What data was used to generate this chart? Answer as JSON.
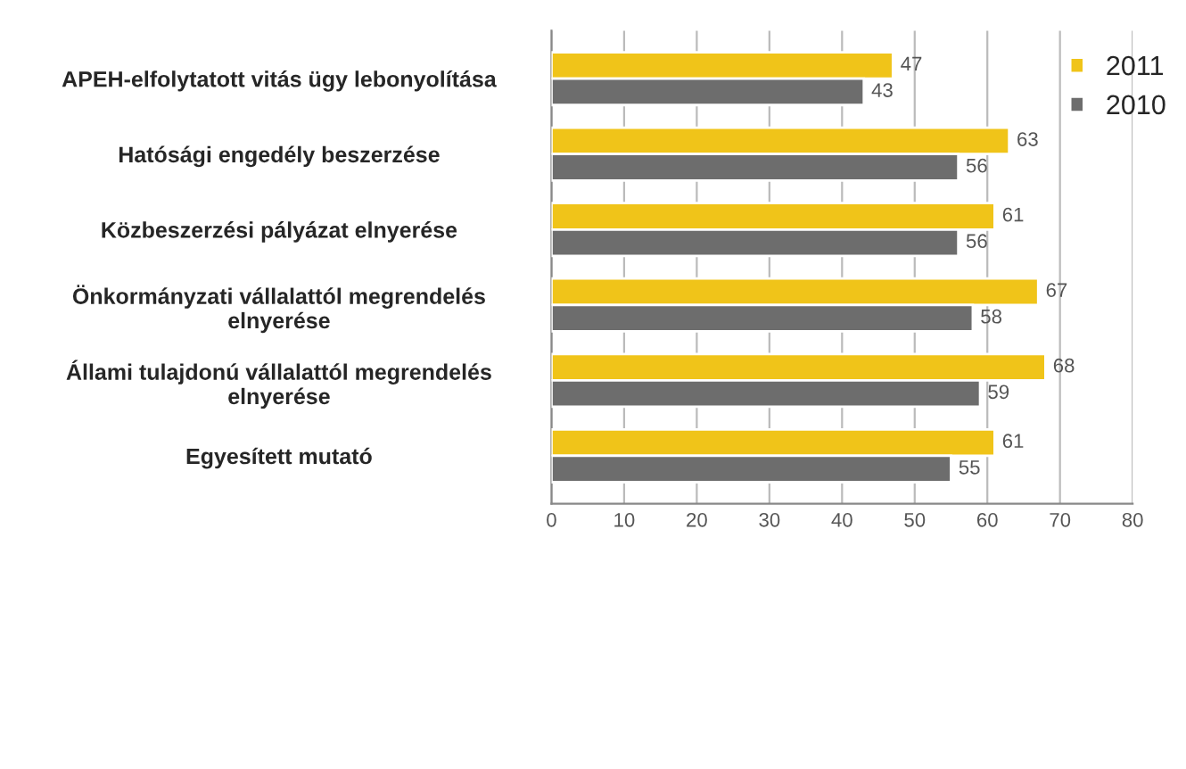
{
  "chart_data": {
    "type": "bar",
    "orientation": "horizontal",
    "categories": [
      "APEH-elfolytatott vitás ügy lebonyolítása",
      "Hatósági engedély beszerzése",
      "Közbeszerzési pályázat elnyerése",
      "Önkormányzati vállalattól megrendelés\nelnyerése",
      "Állami tulajdonú vállalattól megrendelés\nelnyerése",
      "Egyesített mutató"
    ],
    "series": [
      {
        "name": "2011",
        "color": "#f0c419",
        "values": [
          47,
          63,
          61,
          67,
          68,
          61
        ]
      },
      {
        "name": "2010",
        "color": "#6d6d6d",
        "values": [
          43,
          56,
          56,
          58,
          59,
          55
        ]
      }
    ],
    "xlim": [
      0,
      80
    ],
    "xticks": [
      0,
      10,
      20,
      30,
      40,
      50,
      60,
      70,
      80
    ],
    "grid": "x",
    "legend": "top right",
    "data_labels": true
  }
}
